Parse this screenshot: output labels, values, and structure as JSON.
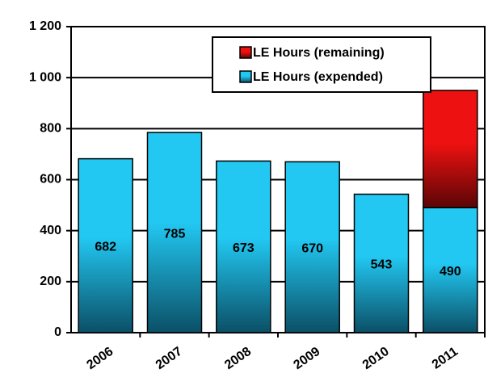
{
  "chart_data": {
    "type": "stacked_bar",
    "categories": [
      "2006",
      "2007",
      "2008",
      "2009",
      "2010",
      "2011"
    ],
    "series": [
      {
        "name": "LE Hours (expended)",
        "color": "#22c8f2",
        "values": [
          682,
          785,
          673,
          670,
          543,
          490
        ]
      },
      {
        "name": "LE Hours (remaining)",
        "color": "#ee1111",
        "values": [
          null,
          null,
          null,
          null,
          null,
          460
        ]
      }
    ],
    "ylim": [
      0,
      1200
    ],
    "yticks": [
      0,
      200,
      400,
      600,
      800,
      {
        "value": 1000,
        "label": "1 000"
      },
      {
        "value": 1200,
        "label": "1 200"
      }
    ],
    "grid": true,
    "legend": "top-right"
  }
}
